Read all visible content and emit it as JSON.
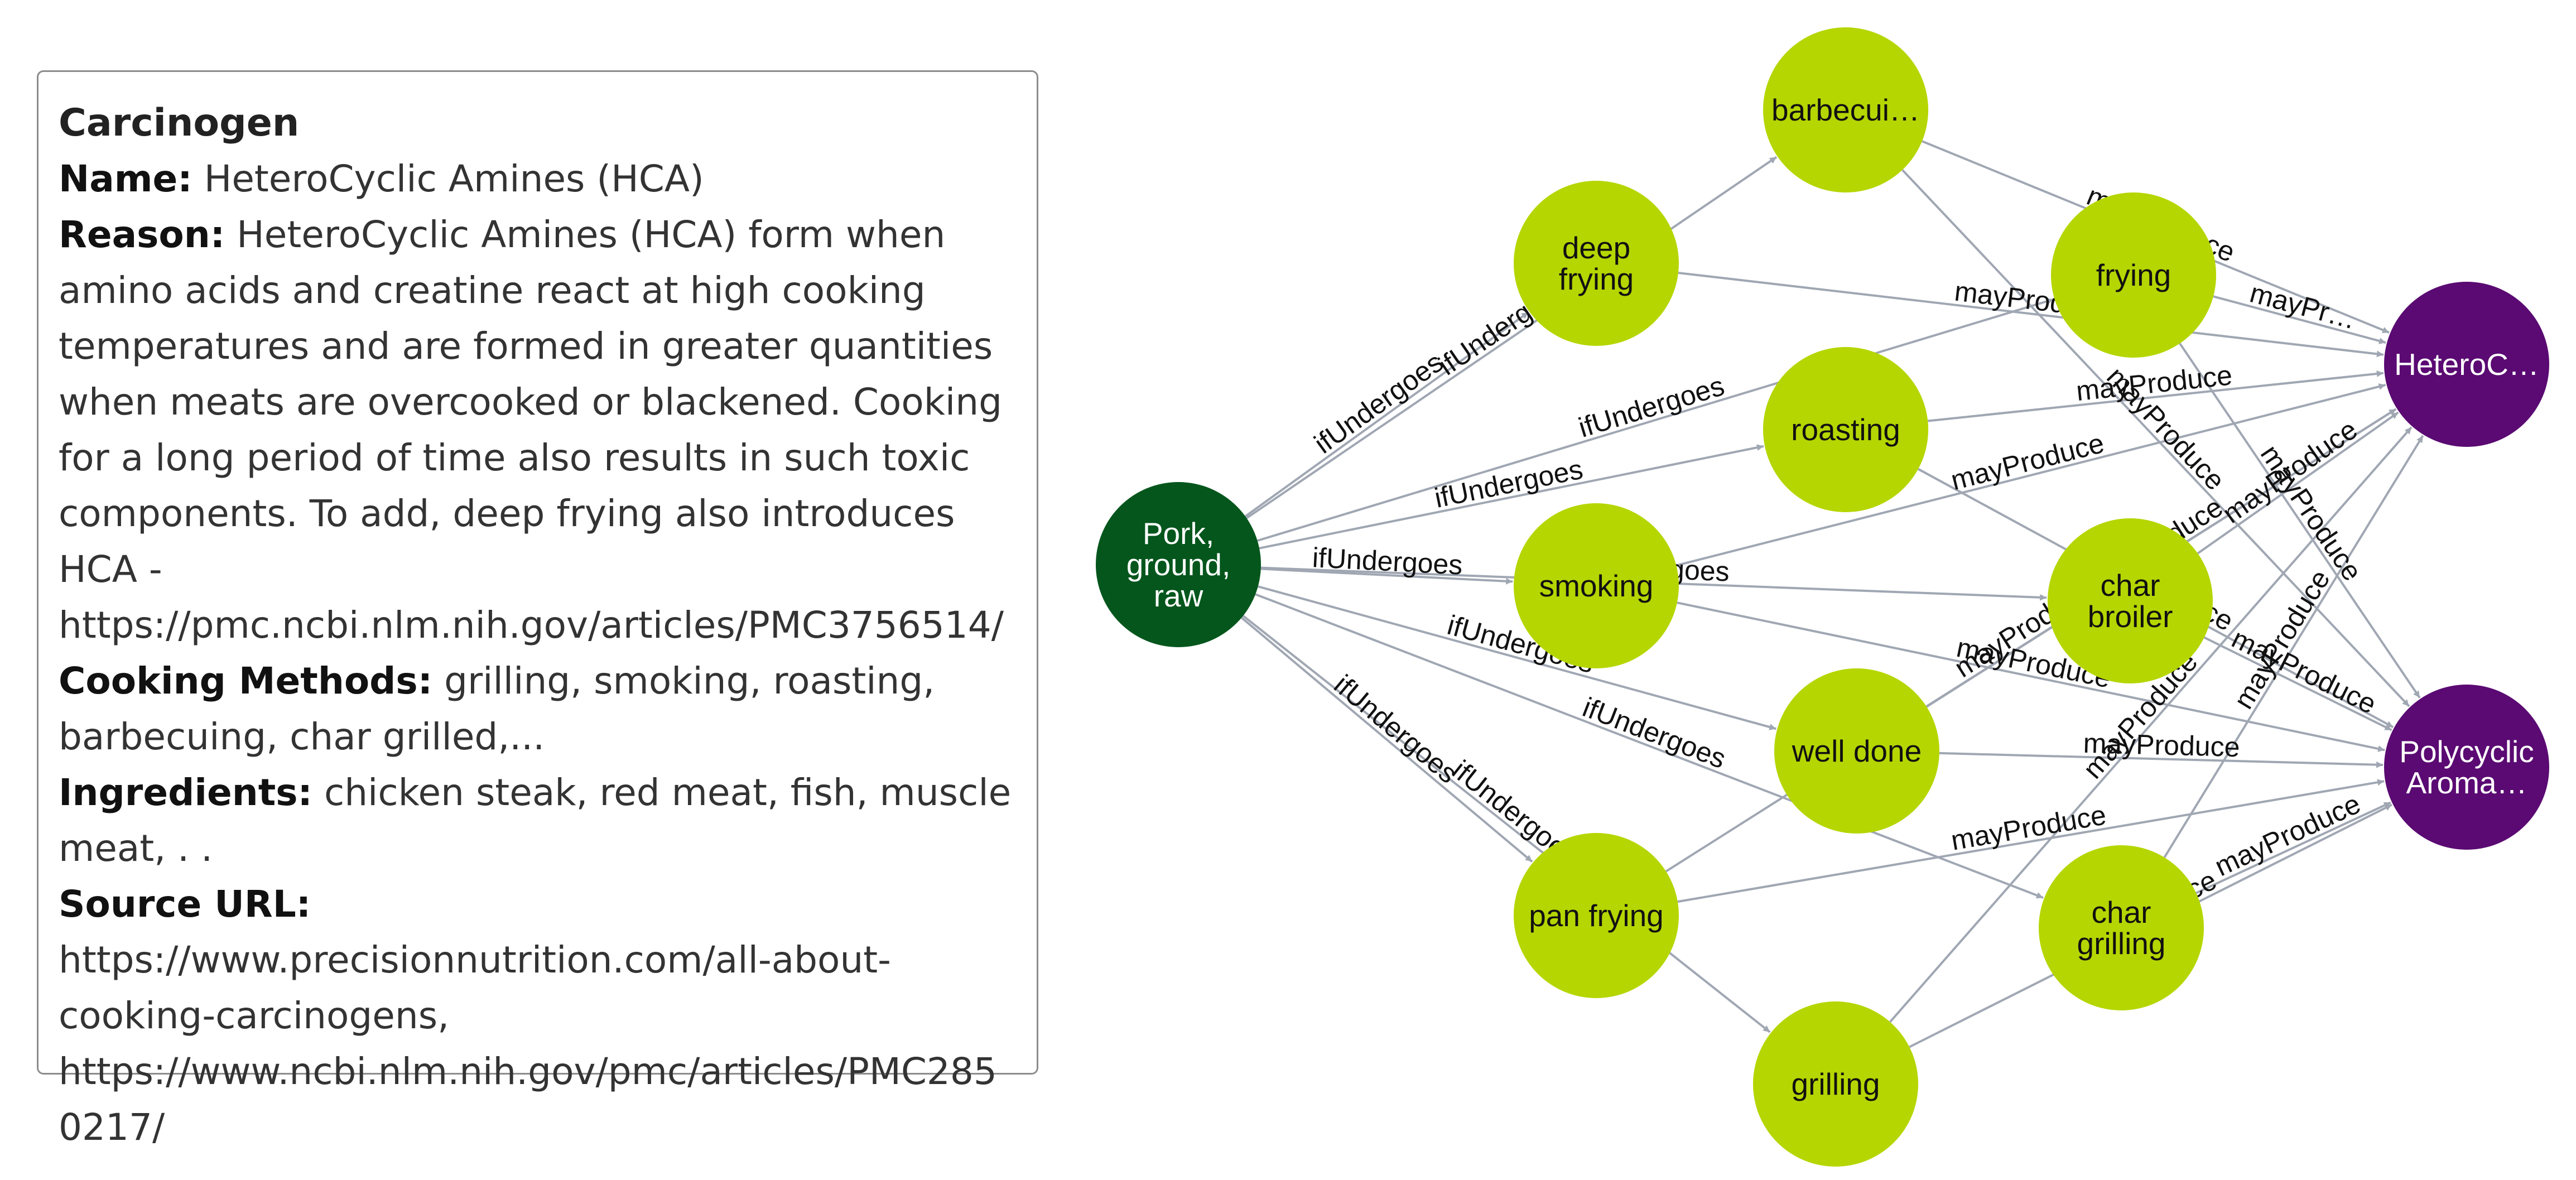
{
  "info": {
    "title": "Carcinogen",
    "name_label": "Name:",
    "name_value": "HeteroCyclic Amines (HCA)",
    "reason_label": "Reason:",
    "reason_value": "HeteroCyclic Amines (HCA) form when amino acids and creatine react at high cooking temperatures and are formed in greater quantities when meats are overcooked or blackened. Cooking for a long period of time also results in such toxic components. To add, deep frying also introduces HCA - https://pmc.ncbi.nlm.nih.gov/articles/PMC3756514/",
    "methods_label": "Cooking Methods:",
    "methods_value": "grilling, smoking, roasting, barbecuing, char grilled,...",
    "ingredients_label": "Ingredients:",
    "ingredients_value": "chicken steak, red meat, fish, muscle meat, . .",
    "source_label": "Source URL:",
    "source_value": "https://www.precisionnutrition.com/all-about-cooking-carcinogens, https://www.ncbi.nlm.nih.gov/pmc/articles/PMC2850217/"
  },
  "colors": {
    "ingredient": "#04561c",
    "method": "#b5d600",
    "carcinogen": "#5a0a72",
    "edge": "#a0a7b3"
  },
  "graph": {
    "nodes": [
      {
        "id": "pork",
        "label": "Pork,\nground,\nraw",
        "type": "ingredient"
      },
      {
        "id": "deep_frying",
        "label": "deep\nfrying",
        "type": "method"
      },
      {
        "id": "barbecuing",
        "label": "barbecui…",
        "type": "method"
      },
      {
        "id": "roasting",
        "label": "roasting",
        "type": "method"
      },
      {
        "id": "smoking",
        "label": "smoking",
        "type": "method"
      },
      {
        "id": "well_done",
        "label": "well done",
        "type": "method"
      },
      {
        "id": "pan_frying",
        "label": "pan frying",
        "type": "method"
      },
      {
        "id": "grilling",
        "label": "grilling",
        "type": "method"
      },
      {
        "id": "frying",
        "label": "frying",
        "type": "method"
      },
      {
        "id": "char_broiler",
        "label": "char\nbroiler",
        "type": "method"
      },
      {
        "id": "char_grilling",
        "label": "char\ngrilling",
        "type": "method"
      },
      {
        "id": "hca",
        "label": "HeteroC…",
        "type": "carcinogen"
      },
      {
        "id": "pah",
        "label": "Polycyclic\nAroma…",
        "type": "carcinogen"
      }
    ],
    "edges": [
      {
        "from": "pork",
        "to": "deep_frying",
        "label": "ifUndergoes"
      },
      {
        "from": "pork",
        "to": "barbecuing",
        "label": "ifUndergoes"
      },
      {
        "from": "pork",
        "to": "roasting",
        "label": "ifUndergoes"
      },
      {
        "from": "pork",
        "to": "frying",
        "label": "ifUndergoes"
      },
      {
        "from": "pork",
        "to": "smoking",
        "label": "ifUndergoes"
      },
      {
        "from": "pork",
        "to": "char_broiler",
        "label": "ifUndergoes"
      },
      {
        "from": "pork",
        "to": "well_done",
        "label": "ifUndergoes"
      },
      {
        "from": "pork",
        "to": "char_grilling",
        "label": "ifUndergoes"
      },
      {
        "from": "pork",
        "to": "pan_frying",
        "label": "ifUndergoes"
      },
      {
        "from": "pork",
        "to": "grilling",
        "label": "ifUndergoes"
      },
      {
        "from": "deep_frying",
        "to": "hca",
        "label": "mayProduce"
      },
      {
        "from": "barbecuing",
        "to": "hca",
        "label": "mayProduce"
      },
      {
        "from": "barbecuing",
        "to": "pah",
        "label": "mayProduce"
      },
      {
        "from": "roasting",
        "to": "hca",
        "label": "mayProduce"
      },
      {
        "from": "roasting",
        "to": "pah",
        "label": "mayProduce"
      },
      {
        "from": "frying",
        "to": "hca",
        "label": "mayPr…"
      },
      {
        "from": "frying",
        "to": "pah",
        "label": "mayProduce"
      },
      {
        "from": "smoking",
        "to": "hca",
        "label": "mayProduce"
      },
      {
        "from": "smoking",
        "to": "pah",
        "label": "mayProduce"
      },
      {
        "from": "char_broiler",
        "to": "hca",
        "label": "mayProduce"
      },
      {
        "from": "char_broiler",
        "to": "pah",
        "label": "mayProduce"
      },
      {
        "from": "well_done",
        "to": "hca",
        "label": "mayProduce"
      },
      {
        "from": "well_done",
        "to": "pah",
        "label": "mayProduce"
      },
      {
        "from": "pan_frying",
        "to": "hca",
        "label": "mayProduce"
      },
      {
        "from": "pan_frying",
        "to": "pah",
        "label": "mayProduce"
      },
      {
        "from": "grilling",
        "to": "hca",
        "label": "mayProduce"
      },
      {
        "from": "grilling",
        "to": "pah",
        "label": "mayProduce"
      },
      {
        "from": "char_grilling",
        "to": "hca",
        "label": "mayProduce"
      },
      {
        "from": "char_grilling",
        "to": "pah",
        "label": "mayProduce"
      }
    ]
  }
}
